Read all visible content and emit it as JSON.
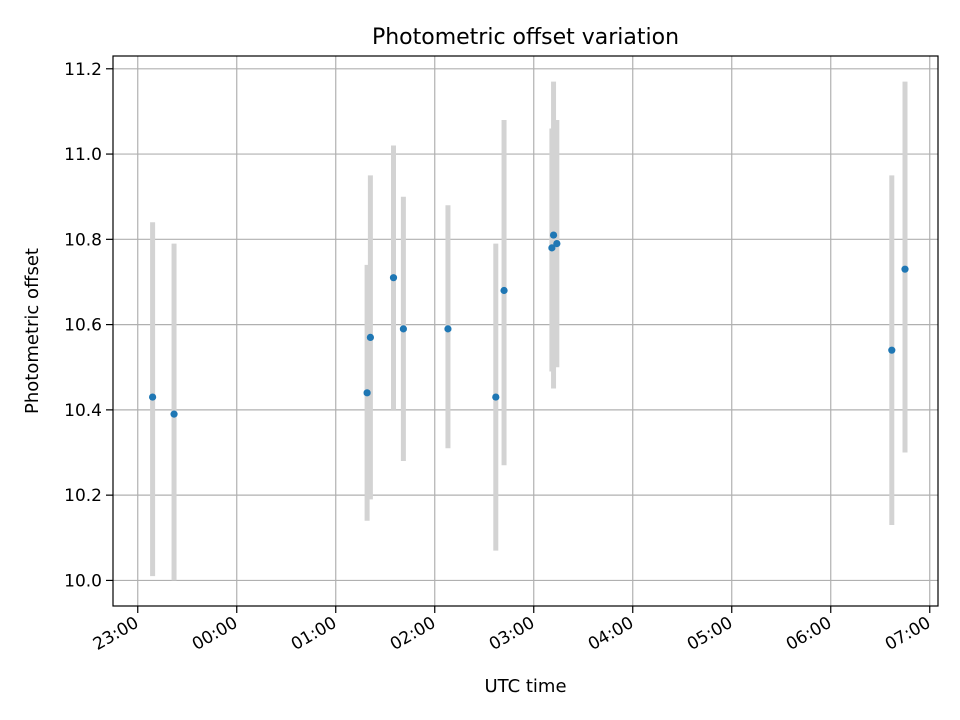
{
  "chart_data": {
    "type": "scatter",
    "title": "Photometric offset variation",
    "xlabel": "UTC time",
    "ylabel": "Photometric offset",
    "x_tick_labels": [
      "23:00",
      "00:00",
      "01:00",
      "02:00",
      "03:00",
      "04:00",
      "05:00",
      "06:00",
      "07:00"
    ],
    "y_tick_labels": [
      "10.0",
      "10.2",
      "10.4",
      "10.6",
      "10.8",
      "11.0",
      "11.2"
    ],
    "ylim": [
      9.94,
      11.23
    ],
    "xlim": [
      "22:45",
      "07:05"
    ],
    "grid": true,
    "point_color": "#1f77b4",
    "errorbar_color": "#d3d3d3",
    "points": [
      {
        "x": "23:09",
        "y": 10.43,
        "yerr": [
          10.01,
          10.84
        ]
      },
      {
        "x": "23:22",
        "y": 10.39,
        "yerr": [
          10.0,
          10.79
        ]
      },
      {
        "x": "01:19",
        "y": 10.44,
        "yerr": [
          10.14,
          10.74
        ]
      },
      {
        "x": "01:21",
        "y": 10.57,
        "yerr": [
          10.19,
          10.95
        ]
      },
      {
        "x": "01:35",
        "y": 10.71,
        "yerr": [
          10.4,
          11.02
        ]
      },
      {
        "x": "01:41",
        "y": 10.59,
        "yerr": [
          10.28,
          10.9
        ]
      },
      {
        "x": "02:08",
        "y": 10.59,
        "yerr": [
          10.31,
          10.88
        ]
      },
      {
        "x": "02:37",
        "y": 10.43,
        "yerr": [
          10.07,
          10.79
        ]
      },
      {
        "x": "02:42",
        "y": 10.68,
        "yerr": [
          10.27,
          11.08
        ]
      },
      {
        "x": "03:11",
        "y": 10.78,
        "yerr": [
          10.49,
          11.06
        ]
      },
      {
        "x": "03:12",
        "y": 10.81,
        "yerr": [
          10.45,
          11.17
        ]
      },
      {
        "x": "03:14",
        "y": 10.79,
        "yerr": [
          10.5,
          11.08
        ]
      },
      {
        "x": "06:37",
        "y": 10.54,
        "yerr": [
          10.13,
          10.95
        ]
      },
      {
        "x": "06:45",
        "y": 10.73,
        "yerr": [
          10.3,
          11.17
        ]
      }
    ]
  }
}
